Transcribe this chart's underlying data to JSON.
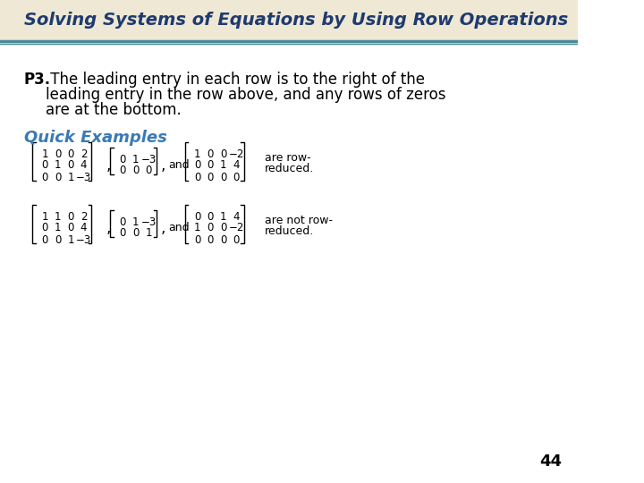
{
  "title": "Solving Systems of Equations by Using Row Operations",
  "title_color": "#1F3A6E",
  "title_bg_color": "#EEE8D5",
  "title_border_color": "#4A8A9A",
  "bg_color": "#FFFFFF",
  "p3_label": "P3.",
  "p3_text_line1": " The leading entry in each row is to the right of the",
  "p3_text_line2": "leading entry in the row above, and any rows of zeros",
  "p3_text_line3": "are at the bottom.",
  "quick_examples_label": "Quick Examples",
  "quick_examples_color": "#3A7AB5",
  "text_color": "#000000",
  "page_number": "44",
  "matrix_color": "#333333"
}
